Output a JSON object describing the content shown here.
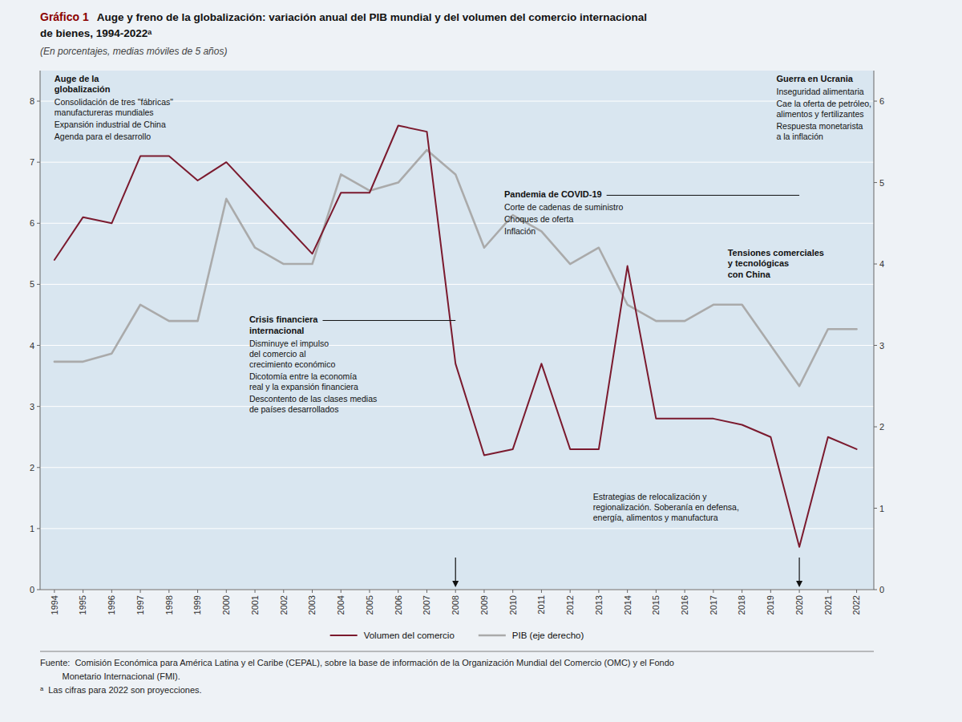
{
  "chart_data": {
    "type": "line",
    "title_label": "Gráfico 1",
    "title": "Auge y freno de la globalización: variación anual del PIB mundial y del volumen del comercio internacional",
    "title_line2": "de bienes, 1994-2022ᵃ",
    "subtitle": "(En porcentajes, medias móviles de 5 años)",
    "x": [
      1994,
      1995,
      1996,
      1997,
      1998,
      1999,
      2000,
      2001,
      2002,
      2003,
      2004,
      2005,
      2006,
      2007,
      2008,
      2009,
      2010,
      2011,
      2012,
      2013,
      2014,
      2015,
      2016,
      2017,
      2018,
      2019,
      2020,
      2021,
      2022
    ],
    "xlim": [
      1993.5,
      2022.6
    ],
    "xticks": [
      1994,
      1995,
      1996,
      1997,
      1998,
      1999,
      2000,
      2001,
      2002,
      2003,
      2004,
      2005,
      2006,
      2007,
      2008,
      2009,
      2010,
      2011,
      2012,
      2013,
      2014,
      2015,
      2016,
      2017,
      2018,
      2019,
      2020,
      2021,
      2022
    ],
    "ylim": [
      0,
      8.5
    ],
    "yticks": [
      0,
      1,
      2,
      3,
      4,
      5,
      6,
      7,
      8
    ],
    "y2lim": [
      0,
      6.375
    ],
    "y2ticks": [
      0,
      1,
      2,
      3,
      4,
      5,
      6
    ],
    "grid": true,
    "legend": "bottom",
    "series": [
      {
        "name": "Volumen del comercio",
        "color": "#7b1a2e",
        "values": [
          5.4,
          6.1,
          6.0,
          7.1,
          7.1,
          6.7,
          7.0,
          6.5,
          6.0,
          5.5,
          6.5,
          6.5,
          7.6,
          7.5,
          3.7,
          2.2,
          2.3,
          3.7,
          2.3,
          2.3,
          5.3,
          2.8,
          2.8,
          2.8,
          2.7,
          2.5,
          0.7,
          2.5,
          2.3
        ]
      },
      {
        "name": "PIB (eje derecho)",
        "color": "#aaaaaa",
        "axis": "y2",
        "values": [
          2.8,
          2.8,
          2.9,
          3.5,
          3.3,
          3.3,
          4.8,
          4.2,
          4.0,
          4.0,
          5.1,
          4.9,
          5.0,
          5.4,
          5.1,
          4.2,
          4.6,
          4.4,
          4.0,
          4.2,
          3.5,
          3.3,
          3.3,
          3.5,
          3.5,
          3.0,
          2.5,
          3.2,
          3.2
        ]
      }
    ],
    "annotations": [
      {
        "title": "Auge de la\nglobalización",
        "x": 1994.0,
        "y": 8.45,
        "items": [
          "Consolidación de tres \"fábricas\"\nmanufactureras mundiales",
          "Expansión industrial de China",
          "Agenda para el desarrollo"
        ]
      },
      {
        "title": "Crisis financiera\ninternacional",
        "x": 2000.8,
        "y": 4.5,
        "event_x": 2008,
        "items": [
          "Disminuye el impulso\ndel comercio al\ncrecimiento económico",
          "Dicotomía entre la economía\nreal y la expansión financiera",
          "Descontento de las clases medias\nde países desarrollados"
        ]
      },
      {
        "title": "Pandemia de COVID-19",
        "x": 2009.7,
        "y": 6.55,
        "event_x": 2020,
        "items": [
          "Corte de cadenas de suministro",
          "Choques de oferta",
          "Inflación"
        ]
      },
      {
        "title": "Guerra en Ucrania",
        "x": 2019.2,
        "y": 8.45,
        "items": [
          "Inseguridad alimentaria",
          "Cae la oferta de petróleo,\nalimentos y fertilizantes",
          "Respuesta monetarista\na la inflación"
        ]
      },
      {
        "title": "Tensiones comerciales\ny tecnológicas\ncon China",
        "x": 2017.5,
        "y": 5.6,
        "event_x": 2020,
        "items": []
      },
      {
        "x": 2012.8,
        "y": 1.6,
        "items": [
          "Estrategias de relocalización y\nregionalización. Soberanía en defensa,\nenergía, alimentos y manufactura"
        ]
      }
    ],
    "notes": [
      "Fuente:  Comisión Económica para América Latina y el Caribe (CEPAL), sobre la base de información de la Organización Mundial del Comercio (OMC) y el Fondo",
      "         Monetario Internacional (FMI).",
      "ᵃ  Las cifras para 2022 son proyecciones."
    ]
  }
}
